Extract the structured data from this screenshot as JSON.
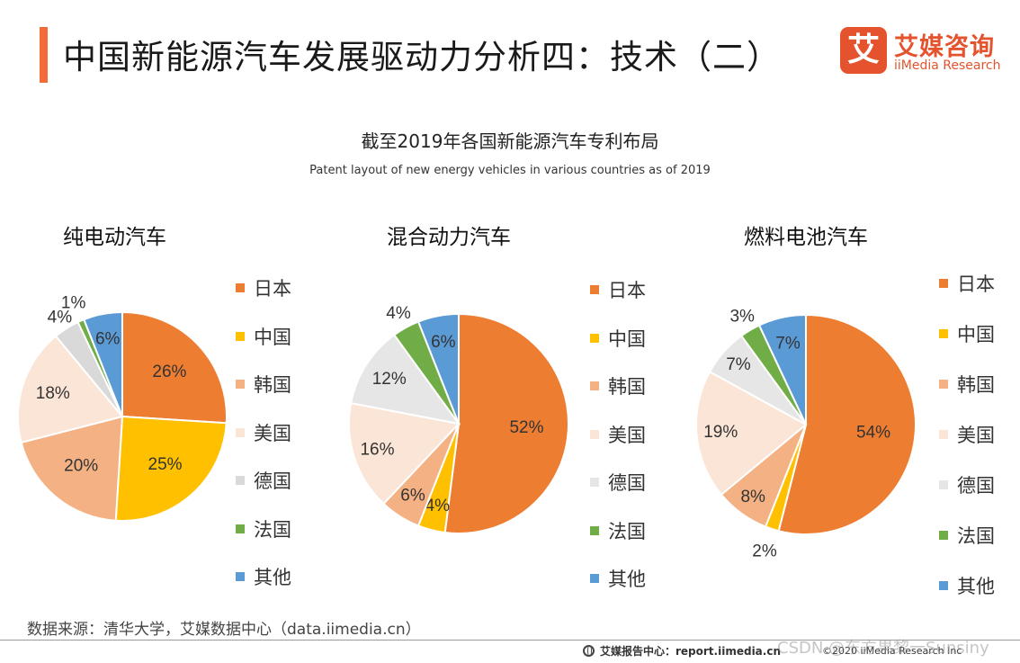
{
  "header": {
    "title": "中国新能源汽车发展驱动力分析四：技术（二）",
    "accent_color": "#F26B38"
  },
  "logo": {
    "mark": "艾",
    "cn": "艾媒咨询",
    "en": "iiMedia Research",
    "color": "#E4532D"
  },
  "chart_data": [
    {
      "type": "pie",
      "title": "截至2019年各国新能源汽车专利布局",
      "subtitle": "Patent layout of new energy vehicles in various countries as of 2019",
      "panel_title": "纯电动汽车",
      "categories": [
        "日本",
        "中国",
        "韩国",
        "美国",
        "德国",
        "法国",
        "其他"
      ],
      "values": [
        26,
        25,
        20,
        18,
        4,
        1,
        6
      ],
      "data_labels": [
        "26%",
        "25%",
        "20%",
        "18%",
        "4%",
        "1%",
        "6%"
      ],
      "colors": [
        "#ED7D31",
        "#FFC000",
        "#F4B183",
        "#FBE5D6",
        "#D9D9D9",
        "#70AD47",
        "#5B9BD5"
      ],
      "legend": [
        "日本",
        "中国",
        "韩国",
        "美国",
        "德国",
        "法国",
        "其他"
      ],
      "legend_position": "right"
    },
    {
      "type": "pie",
      "panel_title": "混合动力汽车",
      "categories": [
        "日本",
        "中国",
        "韩国",
        "美国",
        "德国",
        "法国",
        "其他"
      ],
      "values": [
        52,
        4,
        6,
        16,
        12,
        4,
        6
      ],
      "data_labels": [
        "52%",
        "4%",
        "6%",
        "16%",
        "12%",
        "4%",
        "6%"
      ],
      "colors": [
        "#ED7D31",
        "#FFC000",
        "#F4B183",
        "#FBE5D6",
        "#E7E6E6",
        "#70AD47",
        "#5B9BD5"
      ],
      "legend": [
        "日本",
        "中国",
        "韩国",
        "美国",
        "德国",
        "法国",
        "其他"
      ],
      "legend_position": "right"
    },
    {
      "type": "pie",
      "panel_title": "燃料电池汽车",
      "categories": [
        "日本",
        "中国",
        "韩国",
        "美国",
        "德国",
        "法国",
        "其他"
      ],
      "values": [
        54,
        2,
        8,
        19,
        7,
        3,
        7
      ],
      "data_labels": [
        "54%",
        "2%",
        "8%",
        "19%",
        "7%",
        "3%",
        "7%"
      ],
      "colors": [
        "#ED7D31",
        "#FFC000",
        "#F4B183",
        "#FBE5D6",
        "#E7E6E6",
        "#70AD47",
        "#5B9BD5"
      ],
      "legend": [
        "日本",
        "中国",
        "韩国",
        "美国",
        "德国",
        "法国",
        "其他"
      ],
      "legend_position": "right"
    }
  ],
  "footer": {
    "source": "数据来源：清华大学，艾媒数据中心（data.iimedia.cn）",
    "center": "艾媒报告中心：report.iimedia.cn",
    "right": "©2020  iiMedia Research  Inc",
    "watermark": "CSDN @东方果黎一Sunsiny"
  }
}
